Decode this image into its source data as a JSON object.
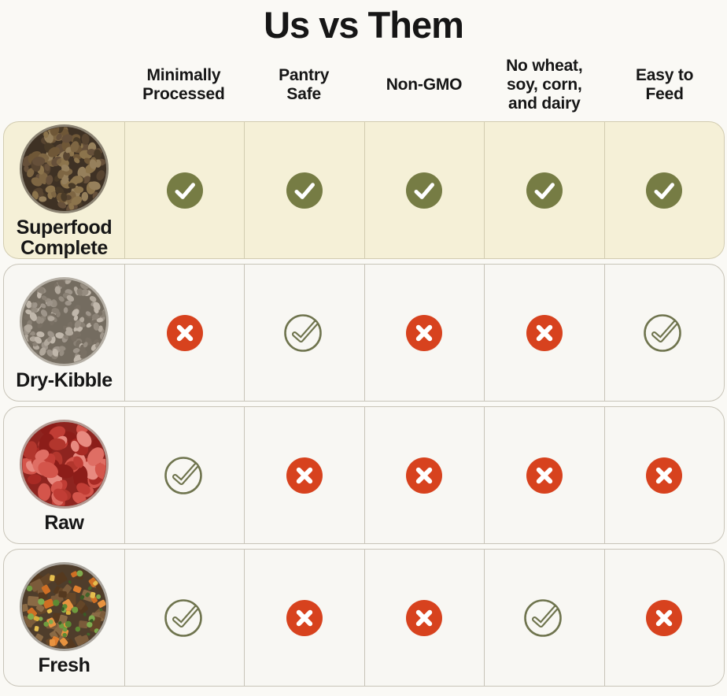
{
  "title": "Us vs Them",
  "columns": [
    {
      "label": "Minimally\nProcessed"
    },
    {
      "label": "Pantry\nSafe"
    },
    {
      "label": "Non-GMO"
    },
    {
      "label": "No wheat,\nsoy, corn,\nand dairy"
    },
    {
      "label": "Easy to\nFeed"
    }
  ],
  "rows": [
    {
      "name": "Superfood Complete",
      "label": "Superfood\nComplete",
      "image": "superfood",
      "highlight": true,
      "values": [
        "check-filled",
        "check-filled",
        "check-filled",
        "check-filled",
        "check-filled"
      ]
    },
    {
      "name": "Dry-Kibble",
      "label": "Dry-Kibble",
      "image": "dry_kibble",
      "highlight": false,
      "values": [
        "cross",
        "check-outline",
        "cross",
        "cross",
        "check-outline"
      ]
    },
    {
      "name": "Raw",
      "label": "Raw",
      "image": "raw",
      "highlight": false,
      "values": [
        "check-outline",
        "cross",
        "cross",
        "cross",
        "cross"
      ]
    },
    {
      "name": "Fresh",
      "label": "Fresh",
      "image": "fresh",
      "highlight": false,
      "values": [
        "check-outline",
        "cross",
        "cross",
        "check-outline",
        "cross"
      ]
    }
  ],
  "chart_data": {
    "type": "table",
    "title": "Us vs Them",
    "columns": [
      "Minimally Processed",
      "Pantry Safe",
      "Non-GMO",
      "No wheat, soy, corn, and dairy",
      "Easy to Feed"
    ],
    "rows": [
      "Superfood Complete",
      "Dry-Kibble",
      "Raw",
      "Fresh"
    ],
    "values": [
      [
        true,
        true,
        true,
        true,
        true
      ],
      [
        false,
        true,
        false,
        false,
        true
      ],
      [
        true,
        false,
        false,
        false,
        false
      ],
      [
        true,
        false,
        false,
        true,
        false
      ]
    ],
    "icon_styles": [
      [
        "check-filled",
        "check-filled",
        "check-filled",
        "check-filled",
        "check-filled"
      ],
      [
        "cross",
        "check-outline",
        "cross",
        "cross",
        "check-outline"
      ],
      [
        "check-outline",
        "cross",
        "cross",
        "cross",
        "cross"
      ],
      [
        "check-outline",
        "cross",
        "cross",
        "check-outline",
        "cross"
      ]
    ],
    "legend_position": "none",
    "grid": true
  },
  "colors": {
    "page_bg": "#faf9f5",
    "card_bg": "#f8f7f3",
    "highlight_bg": "#f5f0d7",
    "border": "#c8c4b8",
    "highlight_border": "#d2ccb0",
    "check_filled": "#767c44",
    "check_outline": "#6f744e",
    "cross": "#d7421e",
    "icon_mark": "#ffffff",
    "text": "#161616"
  },
  "food_images": {
    "superfood": {
      "ring": "#8d8575",
      "base": "#3e3124",
      "shapes": [
        {
          "kind": "ellipse",
          "count": 120,
          "min": 4,
          "max": 8.5,
          "palette": [
            "#6f5737",
            "#7e6643",
            "#574430",
            "#8c744c",
            "#493a27",
            "#66503a",
            "#96805c"
          ]
        }
      ]
    },
    "dry_kibble": {
      "ring": "#b6b0a6",
      "base": "#746c60",
      "shapes": [
        {
          "kind": "ellipse",
          "count": 140,
          "min": 3.5,
          "max": 6,
          "palette": [
            "#9e958a",
            "#8a8175",
            "#b1a89c",
            "#797064",
            "#c0b7ab",
            "#968d81"
          ]
        }
      ]
    },
    "raw": {
      "ring": "#b59b94",
      "base": "#8e241f",
      "shapes": [
        {
          "kind": "ellipse",
          "count": 55,
          "min": 7,
          "max": 14,
          "palette": [
            "#c13d35",
            "#a82a24",
            "#d4554b",
            "#8c1d19",
            "#df6e64",
            "#b2362d",
            "#e88a80"
          ]
        }
      ]
    },
    "fresh": {
      "ring": "#aaa59d",
      "base": "#4f3d2b",
      "shapes": [
        {
          "kind": "rect",
          "count": 48,
          "min": 4.5,
          "max": 8,
          "palette": [
            "#7b5b3a",
            "#644628",
            "#8a6a45",
            "#55391f"
          ]
        },
        {
          "kind": "rect",
          "count": 16,
          "min": 4,
          "max": 6.5,
          "palette": [
            "#dd7e2e",
            "#e8933f",
            "#cf6f24"
          ]
        },
        {
          "kind": "circle",
          "count": 20,
          "min": 2.8,
          "max": 4.2,
          "palette": [
            "#6f9c3f",
            "#5d8a33",
            "#7fab4e"
          ]
        },
        {
          "kind": "rect",
          "count": 7,
          "min": 3,
          "max": 4.5,
          "palette": [
            "#e5be4e",
            "#d9ad3a"
          ]
        },
        {
          "kind": "rect",
          "count": 10,
          "min": 2,
          "max": 3,
          "palette": [
            "#44652b",
            "#3a5a24"
          ]
        }
      ]
    }
  }
}
